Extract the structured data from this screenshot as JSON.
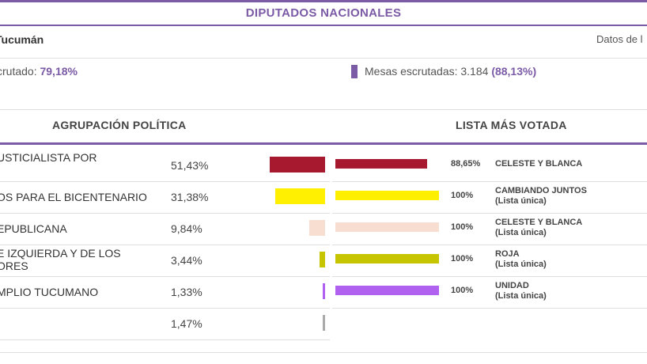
{
  "header": {
    "title": "DIPUTADOS NACIONALES"
  },
  "region": "Tucumán",
  "datos_label": "Datos de l",
  "stats": {
    "escrutado_label": "crutado: ",
    "escrutado_value": "79,18%",
    "mesas_label": "Mesas escrutadas: 3.184 ",
    "mesas_value": "(88,13%)"
  },
  "columns": {
    "left": "AGRUPACIÓN POLÍTICA",
    "right": "LISTA MÁS VOTADA"
  },
  "rows": [
    {
      "party": "USTICIALISTA POR",
      "party2": "",
      "pct": "51,43%",
      "color": "#a6192e",
      "share": 51.43,
      "lista_pct": "88,65%",
      "lista_share": 88.65,
      "lista": "CELESTE Y BLANCA",
      "lista_sub": ""
    },
    {
      "party": "OS PARA EL BICENTENARIO",
      "party2": "",
      "pct": "31,38%",
      "color": "#ffef00",
      "share": 31.38,
      "lista_pct": "100%",
      "lista_share": 100,
      "lista": "CAMBIANDO JUNTOS",
      "lista_sub": "(Lista única)"
    },
    {
      "party": "EPUBLICANA",
      "party2": "",
      "pct": "9,84%",
      "color": "#f8ded0",
      "share": 9.84,
      "lista_pct": "100%",
      "lista_share": 100,
      "lista": "CELESTE Y BLANCA",
      "lista_sub": "(Lista única)"
    },
    {
      "party": "E IZQUIERDA Y DE LOS",
      "party2": "ORES",
      "pct": "3,44%",
      "color": "#c7c400",
      "share": 3.44,
      "lista_pct": "100%",
      "lista_share": 100,
      "lista": "ROJA",
      "lista_sub": "(Lista única)"
    },
    {
      "party": "MPLIO TUCUMANO",
      "party2": "",
      "pct": "1,33%",
      "color": "#b061f0",
      "share": 1.33,
      "lista_pct": "100%",
      "lista_share": 100,
      "lista": "UNIDAD",
      "lista_sub": "(Lista única)"
    },
    {
      "party": "",
      "party2": "",
      "pct": "1,47%",
      "color": "#aaaaaa",
      "share": 1.47,
      "lista_pct": "",
      "lista_share": 0,
      "lista": "",
      "lista_sub": ""
    }
  ]
}
